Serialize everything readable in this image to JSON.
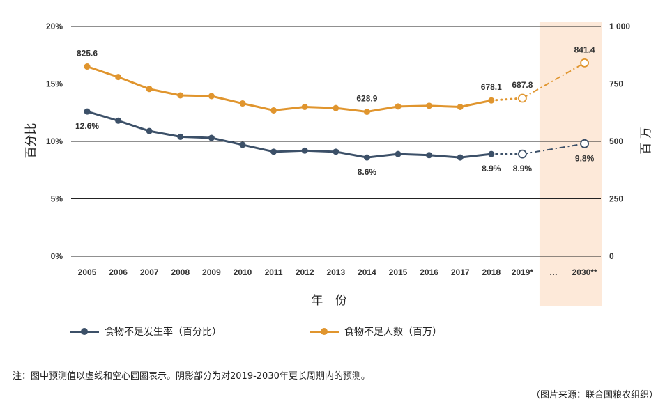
{
  "chart_data": {
    "type": "line",
    "categories": [
      "2005",
      "2006",
      "2007",
      "2008",
      "2009",
      "2010",
      "2011",
      "2012",
      "2013",
      "2014",
      "2015",
      "2016",
      "2017",
      "2018",
      "2019*",
      "…",
      "2030**"
    ],
    "xlabel": "年 份",
    "ylabel_left": "百分比",
    "ylabel_right": "百 万",
    "y_left_ticks": [
      "20%",
      "15%",
      "10%",
      "5%",
      "0%"
    ],
    "y_left_range": [
      0,
      20
    ],
    "y_right_ticks": [
      "1 000",
      "750",
      "500",
      "250",
      "0"
    ],
    "y_right_range": [
      0,
      1000
    ],
    "grid": "horizontal",
    "forecast_region": [
      "2019*",
      "2030**"
    ],
    "series": [
      {
        "name": "食物不足发生率（百分比）",
        "axis": "left",
        "color": "#3c5068",
        "values": [
          12.6,
          11.8,
          10.9,
          10.4,
          10.3,
          9.7,
          9.1,
          9.2,
          9.1,
          8.6,
          8.9,
          8.8,
          8.6,
          8.9,
          8.9,
          null,
          9.8
        ]
      },
      {
        "name": "食物不足人数（百万）",
        "axis": "right",
        "color": "#e0952e",
        "values": [
          825.6,
          780,
          728,
          700,
          697,
          665,
          635,
          650,
          645,
          628.9,
          652,
          655,
          650,
          678.1,
          687.8,
          null,
          841.4
        ]
      }
    ],
    "data_labels": [
      {
        "series": 0,
        "index": 0,
        "text": "12.6%",
        "pos": "below"
      },
      {
        "series": 0,
        "index": 9,
        "text": "8.6%",
        "pos": "below"
      },
      {
        "series": 0,
        "index": 13,
        "text": "8.9%",
        "pos": "below"
      },
      {
        "series": 0,
        "index": 14,
        "text": "8.9%",
        "pos": "below"
      },
      {
        "series": 0,
        "index": 16,
        "text": "9.8%",
        "pos": "below"
      },
      {
        "series": 1,
        "index": 0,
        "text": "825.6",
        "pos": "above"
      },
      {
        "series": 1,
        "index": 9,
        "text": "628.9",
        "pos": "above"
      },
      {
        "series": 1,
        "index": 13,
        "text": "678.1",
        "pos": "above"
      },
      {
        "series": 1,
        "index": 14,
        "text": "687.8",
        "pos": "above"
      },
      {
        "series": 1,
        "index": 16,
        "text": "841.4",
        "pos": "above"
      }
    ],
    "legend_position": "bottom",
    "colors": {
      "shade": "#fde9d9",
      "grid": "#222222"
    }
  },
  "note": "注：图中预测值以虚线和空心圆圈表示。阴影部分为对2019-2030年更长周期内的预测。",
  "source": "（图片来源：联合国粮农组织）"
}
